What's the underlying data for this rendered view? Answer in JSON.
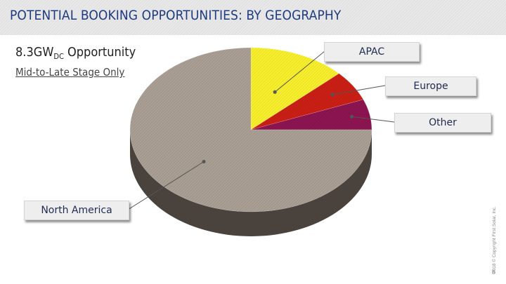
{
  "header": {
    "title": "POTENTIAL BOOKING OPPORTUNITIES: BY GEOGRAPHY"
  },
  "summary": {
    "opportunity_value": "8.3GW",
    "opportunity_subscript": "DC",
    "opportunity_suffix": " Opportunity",
    "stage_note": "Mid-to-Late Stage Only"
  },
  "chart_data": {
    "type": "pie",
    "title": "",
    "categories": [
      "APAC",
      "Europe",
      "Other",
      "North America"
    ],
    "values": [
      13,
      6,
      6,
      75
    ],
    "colors": [
      "#f7ee2c",
      "#c91f15",
      "#8c1450",
      "#a99e93"
    ],
    "side_colors": [
      "#b7ac10",
      "#7a1009",
      "#520b2e",
      "#4a423c"
    ],
    "style": "3D tilted pie",
    "legend": "callout labels"
  },
  "footer": {
    "copyright": "2018 © Copyright First Solar, Inc.",
    "page_number": "8"
  }
}
